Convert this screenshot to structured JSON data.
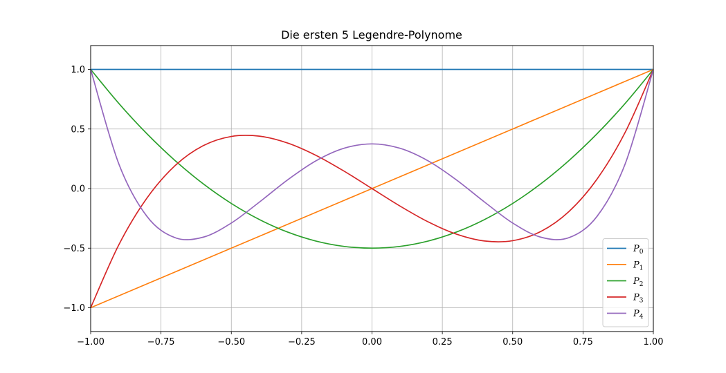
{
  "chart_data": {
    "type": "line",
    "title": "Die ersten 5 Legendre-Polynome",
    "xlabel": "",
    "ylabel": "",
    "xlim": [
      -1.0,
      1.0
    ],
    "ylim": [
      -1.2,
      1.2
    ],
    "xticks": [
      -1.0,
      -0.75,
      -0.5,
      -0.25,
      0.0,
      0.25,
      0.5,
      0.75,
      1.0
    ],
    "xtick_labels": [
      "−1.00",
      "−0.75",
      "−0.50",
      "−0.25",
      "0.00",
      "0.25",
      "0.50",
      "0.75",
      "1.00"
    ],
    "yticks": [
      -1.0,
      -0.5,
      0.0,
      0.5,
      1.0
    ],
    "ytick_labels": [
      "−1.0",
      "−0.5",
      "0.0",
      "0.5",
      "1.0"
    ],
    "grid": true,
    "legend_position": "lower-right",
    "x": [
      -1.0,
      -0.9,
      -0.8,
      -0.7,
      -0.6,
      -0.5,
      -0.4,
      -0.3,
      -0.2,
      -0.1,
      0.0,
      0.1,
      0.2,
      0.3,
      0.4,
      0.5,
      0.6,
      0.7,
      0.8,
      0.9,
      1.0
    ],
    "series": [
      {
        "name": "P",
        "subscript": "0",
        "color": "#1f77b4",
        "values": [
          1,
          1,
          1,
          1,
          1,
          1,
          1,
          1,
          1,
          1,
          1,
          1,
          1,
          1,
          1,
          1,
          1,
          1,
          1,
          1,
          1
        ]
      },
      {
        "name": "P",
        "subscript": "1",
        "color": "#ff7f0e",
        "values": [
          -1.0,
          -0.9,
          -0.8,
          -0.7,
          -0.6,
          -0.5,
          -0.4,
          -0.3,
          -0.2,
          -0.1,
          0.0,
          0.1,
          0.2,
          0.3,
          0.4,
          0.5,
          0.6,
          0.7,
          0.8,
          0.9,
          1.0
        ]
      },
      {
        "name": "P",
        "subscript": "2",
        "color": "#2ca02c",
        "values": [
          1.0,
          0.715,
          0.46,
          0.235,
          0.04,
          -0.125,
          -0.26,
          -0.365,
          -0.44,
          -0.485,
          -0.5,
          -0.485,
          -0.44,
          -0.365,
          -0.26,
          -0.125,
          0.04,
          0.235,
          0.46,
          0.715,
          1.0
        ]
      },
      {
        "name": "P",
        "subscript": "3",
        "color": "#d62728",
        "values": [
          -1.0,
          -0.4725,
          -0.08,
          0.1925,
          0.36,
          0.4375,
          0.44,
          0.3825,
          0.28,
          0.1475,
          0.0,
          -0.1475,
          -0.28,
          -0.3825,
          -0.44,
          -0.4375,
          -0.36,
          -0.1925,
          0.08,
          0.4725,
          1.0
        ]
      },
      {
        "name": "P",
        "subscript": "4",
        "color": "#9467bd",
        "values": [
          1.0,
          0.2079,
          -0.233,
          -0.4121,
          -0.408,
          -0.2891,
          -0.113,
          0.0729,
          0.232,
          0.3379,
          0.375,
          0.3379,
          0.232,
          0.0729,
          -0.113,
          -0.2891,
          -0.408,
          -0.4121,
          -0.233,
          0.2079,
          1.0
        ]
      }
    ]
  }
}
